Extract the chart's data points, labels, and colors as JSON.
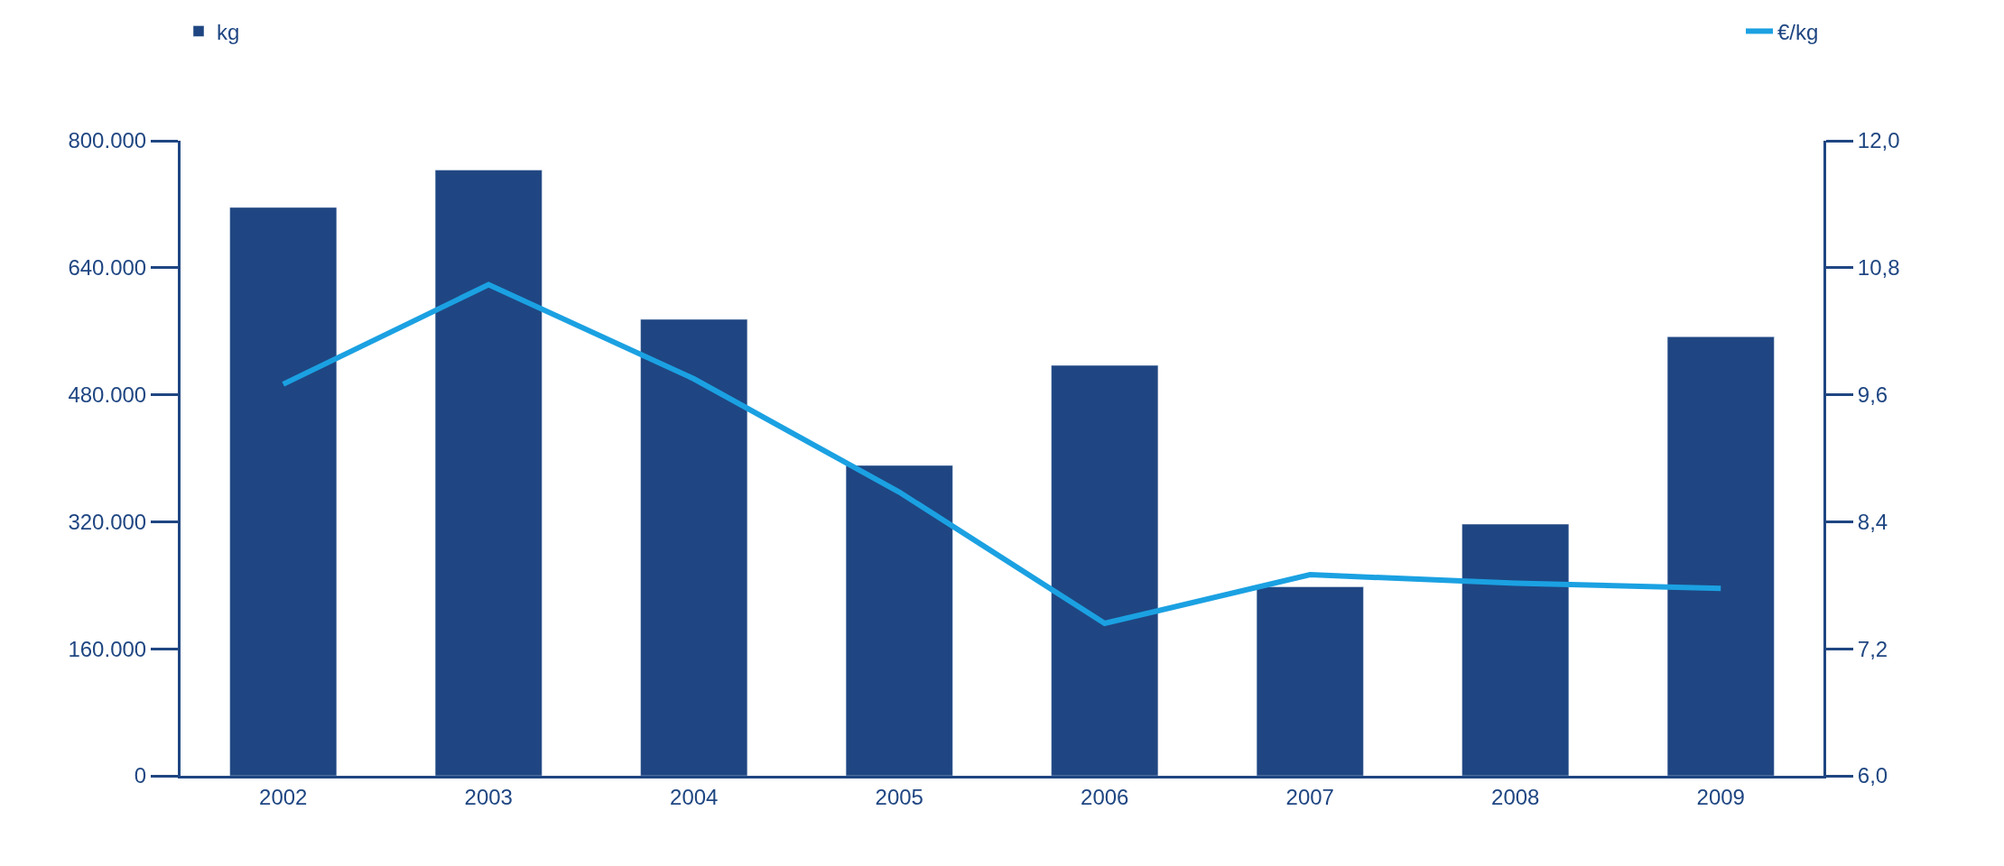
{
  "chart_data": {
    "type": "bar",
    "categories": [
      "2002",
      "2003",
      "2004",
      "2005",
      "2006",
      "2007",
      "2008",
      "2009"
    ],
    "series": [
      {
        "name": "kg",
        "color": "#1f4682",
        "values": [
          716000,
          763000,
          575000,
          391000,
          517000,
          238000,
          317000,
          553000
        ]
      },
      {
        "name": "€/kg",
        "type": "line",
        "axis": "y2",
        "color": "#1ba1e2",
        "values": [
          9.7,
          10.64,
          9.75,
          8.68,
          7.44,
          7.9,
          7.82,
          7.77
        ]
      }
    ],
    "ylim": [
      0,
      800000
    ],
    "yticks": [
      {
        "value": 0,
        "label": "0"
      },
      {
        "value": 160000,
        "label": "160.000"
      },
      {
        "value": 320000,
        "label": "320.000"
      },
      {
        "value": 480000,
        "label": "480.000"
      },
      {
        "value": 640000,
        "label": "640.000"
      },
      {
        "value": 800000,
        "label": "800.000"
      }
    ],
    "y2lim": [
      6,
      12
    ],
    "y2ticks": [
      {
        "value": 6,
        "label": "6,0"
      },
      {
        "value": 7.2,
        "label": "7,2"
      },
      {
        "value": 8.4,
        "label": "8,4"
      },
      {
        "value": 9.6,
        "label": "9,6"
      },
      {
        "value": 10.8,
        "label": "10,8"
      },
      {
        "value": 12,
        "label": "12,0"
      }
    ],
    "legend": "top",
    "marker": "none",
    "line_style": "solid"
  }
}
